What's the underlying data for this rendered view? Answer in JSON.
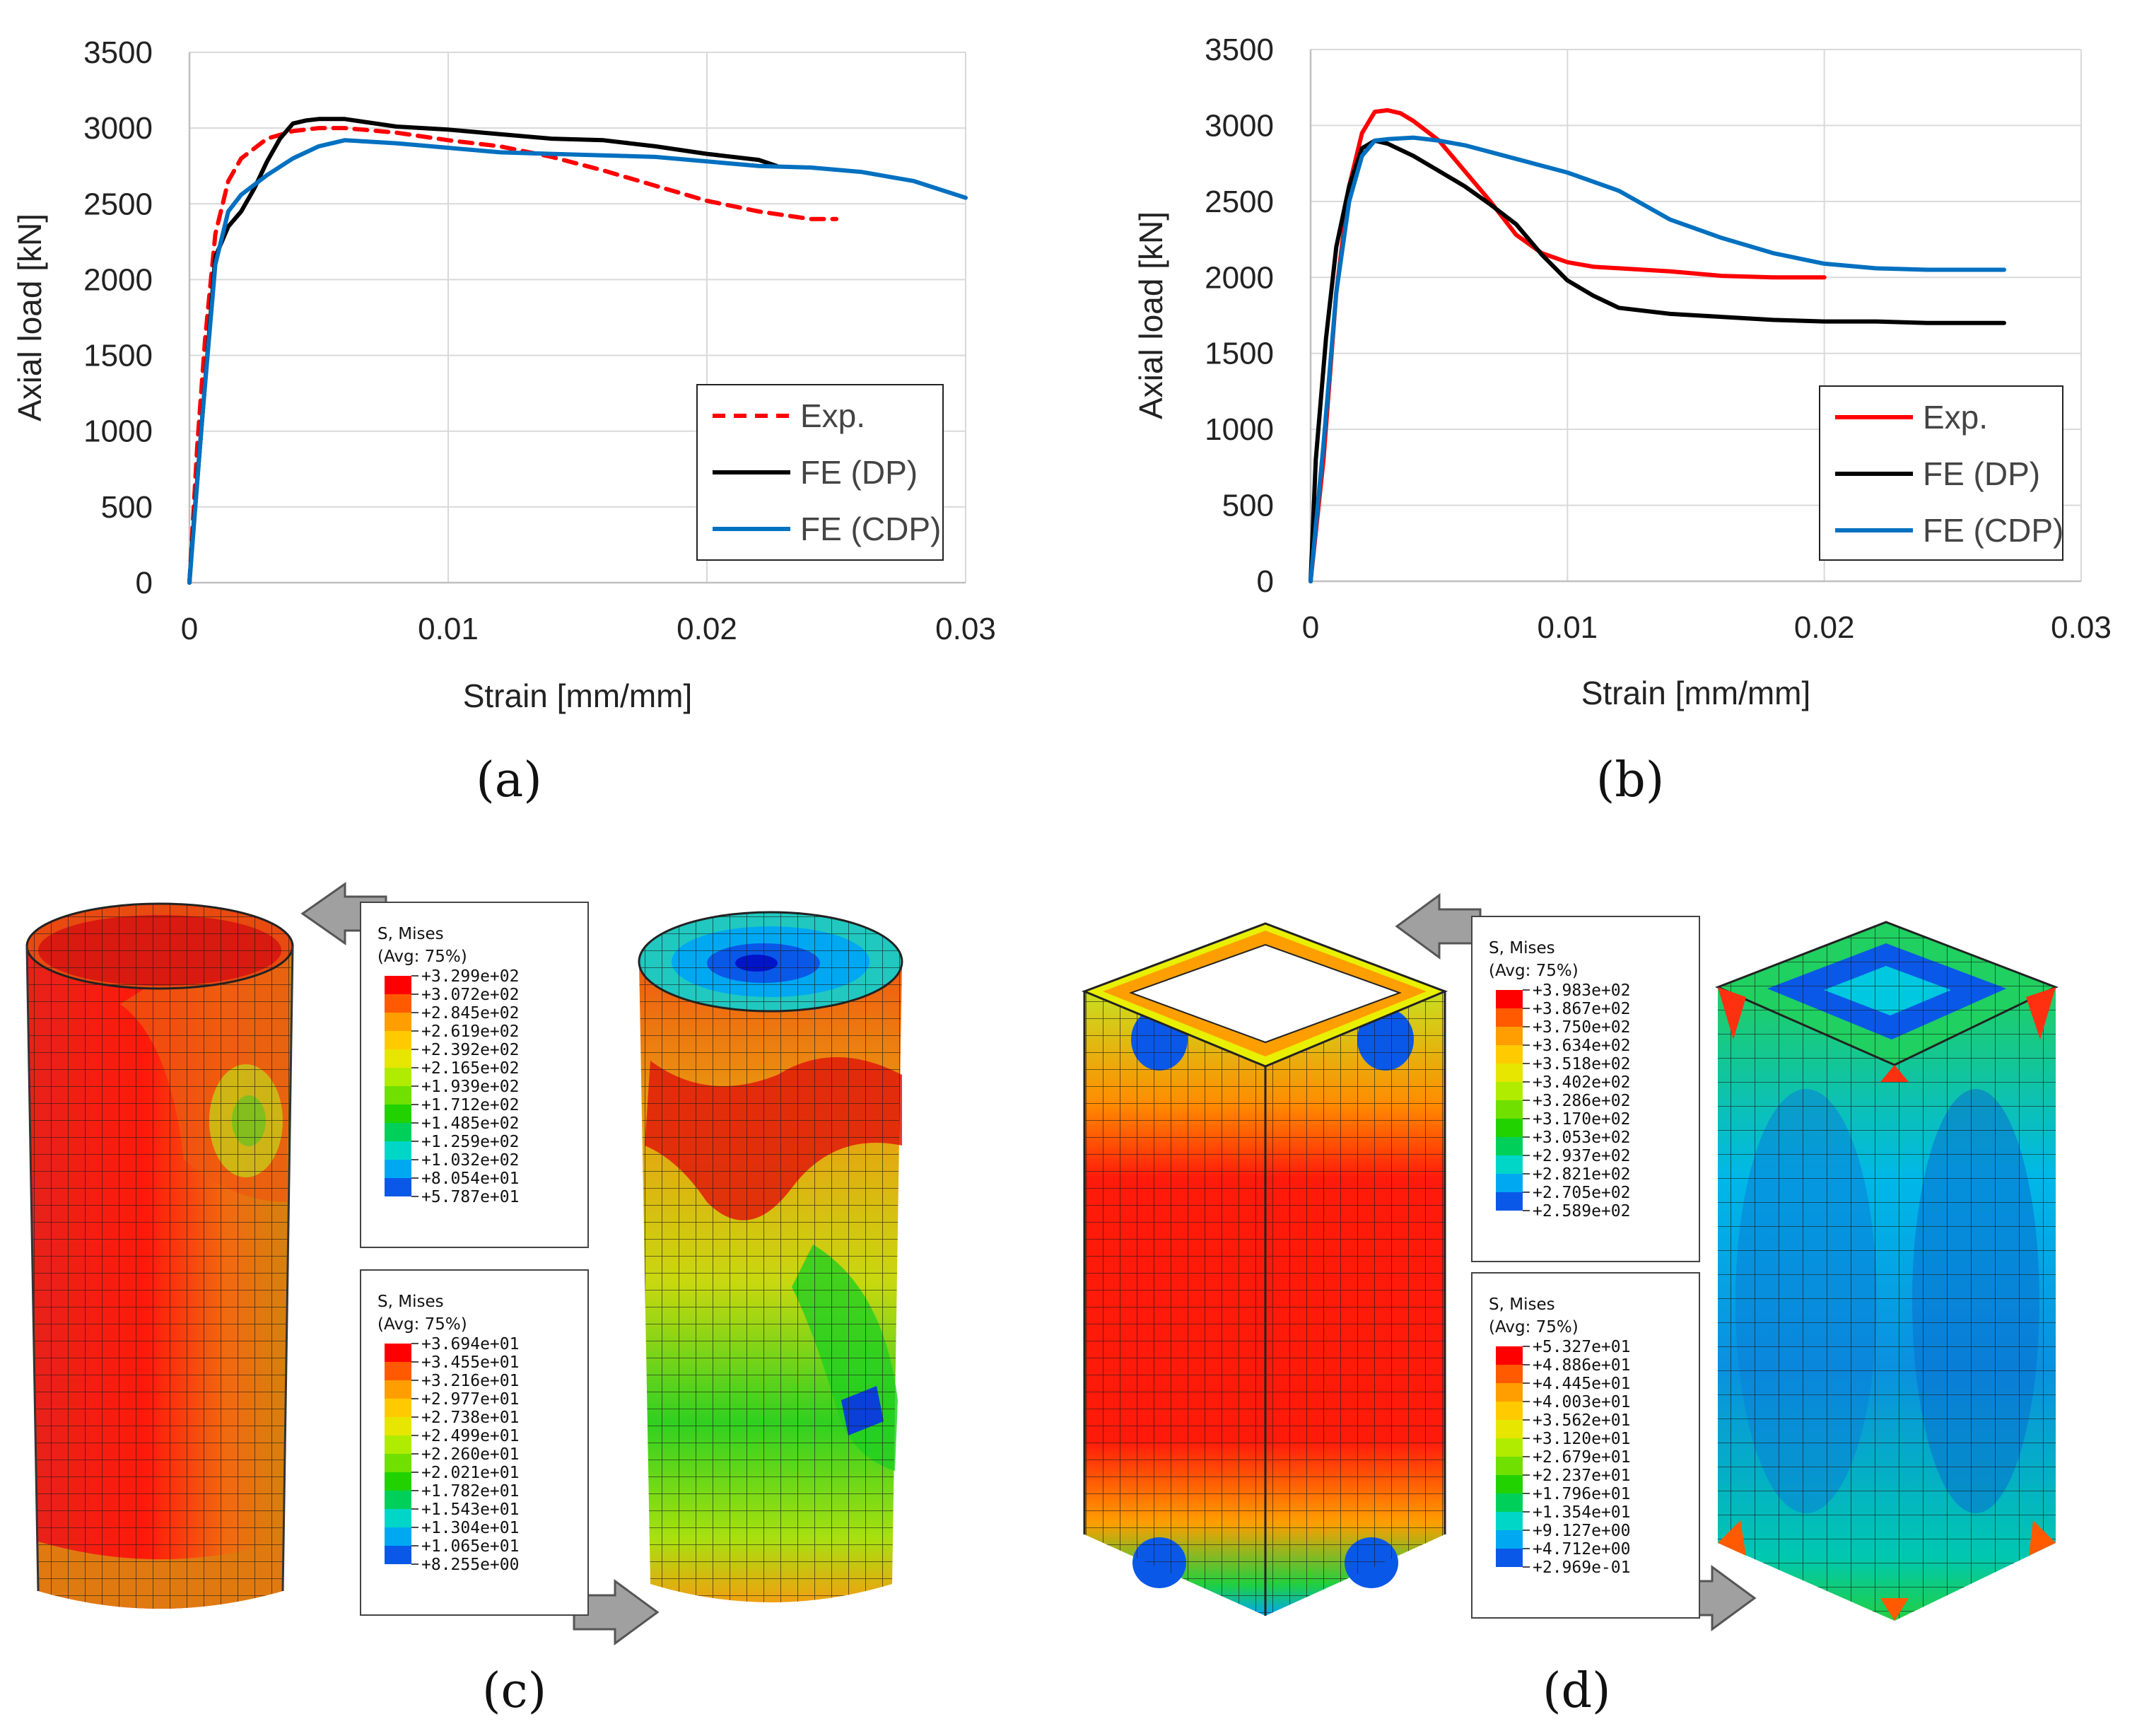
{
  "chart_data": [
    {
      "type": "line",
      "panel_label": "(a)",
      "xlabel": "Strain [mm/mm]",
      "ylabel": "Axial load [kN]",
      "xlim": [
        0,
        0.03
      ],
      "ylim": [
        0,
        3500
      ],
      "xticks": [
        0,
        0.01,
        0.02,
        0.03
      ],
      "xtick_labels": [
        "0",
        "0.01",
        "0.02",
        "0.03"
      ],
      "yticks": [
        0,
        500,
        1000,
        1500,
        2000,
        2500,
        3000,
        3500
      ],
      "ytick_labels": [
        "0",
        "500",
        "1000",
        "1500",
        "2000",
        "2500",
        "3000",
        "3500"
      ],
      "grid": "horizontal",
      "legend_position": "bottom-right",
      "series": [
        {
          "name": "Exp.",
          "color": "#ff0000",
          "dash": true,
          "x": [
            0,
            0.0003,
            0.0006,
            0.001,
            0.0015,
            0.002,
            0.003,
            0.004,
            0.005,
            0.006,
            0.008,
            0.01,
            0.012,
            0.014,
            0.016,
            0.018,
            0.02,
            0.022,
            0.024,
            0.025
          ],
          "y": [
            0,
            900,
            1600,
            2300,
            2650,
            2800,
            2930,
            2980,
            3000,
            3000,
            2970,
            2920,
            2880,
            2810,
            2720,
            2620,
            2520,
            2450,
            2400,
            2400
          ]
        },
        {
          "name": "FE (DP)",
          "color": "#000000",
          "dash": false,
          "x": [
            0,
            0.0001,
            0.0005,
            0.001,
            0.0015,
            0.002,
            0.0025,
            0.003,
            0.0035,
            0.004,
            0.0045,
            0.005,
            0.006,
            0.008,
            0.01,
            0.012,
            0.014,
            0.016,
            0.018,
            0.02,
            0.022,
            0.0227
          ],
          "y": [
            0,
            250,
            1100,
            2150,
            2350,
            2450,
            2600,
            2780,
            2930,
            3030,
            3050,
            3060,
            3060,
            3010,
            2990,
            2960,
            2930,
            2920,
            2880,
            2830,
            2790,
            2750
          ]
        },
        {
          "name": "FE (CDP)",
          "color": "#0070c0",
          "dash": false,
          "x": [
            0,
            0.0005,
            0.001,
            0.0015,
            0.002,
            0.003,
            0.004,
            0.005,
            0.006,
            0.008,
            0.01,
            0.012,
            0.014,
            0.016,
            0.018,
            0.02,
            0.022,
            0.024,
            0.026,
            0.028,
            0.03
          ],
          "y": [
            0,
            1100,
            2100,
            2450,
            2560,
            2690,
            2800,
            2880,
            2920,
            2900,
            2870,
            2840,
            2830,
            2820,
            2810,
            2780,
            2750,
            2740,
            2710,
            2650,
            2540
          ]
        }
      ]
    },
    {
      "type": "line",
      "panel_label": "(b)",
      "xlabel": "Strain [mm/mm]",
      "ylabel": "Axial load [kN]",
      "xlim": [
        0,
        0.03
      ],
      "ylim": [
        0,
        3500
      ],
      "xticks": [
        0,
        0.01,
        0.02,
        0.03
      ],
      "xtick_labels": [
        "0",
        "0.01",
        "0.02",
        "0.03"
      ],
      "yticks": [
        0,
        500,
        1000,
        1500,
        2000,
        2500,
        3000,
        3500
      ],
      "ytick_labels": [
        "0",
        "500",
        "1000",
        "1500",
        "2000",
        "2500",
        "3000",
        "3500"
      ],
      "grid": "horizontal",
      "legend_position": "bottom-right",
      "series": [
        {
          "name": "Exp.",
          "color": "#ff0000",
          "dash": false,
          "x": [
            0,
            0.0005,
            0.001,
            0.0015,
            0.002,
            0.0025,
            0.003,
            0.0035,
            0.004,
            0.005,
            0.006,
            0.007,
            0.008,
            0.009,
            0.01,
            0.011,
            0.012,
            0.014,
            0.016,
            0.018,
            0.02
          ],
          "y": [
            0,
            800,
            1900,
            2600,
            2950,
            3090,
            3100,
            3080,
            3030,
            2900,
            2700,
            2500,
            2280,
            2160,
            2100,
            2070,
            2060,
            2040,
            2010,
            2000,
            2000
          ]
        },
        {
          "name": "FE (DP)",
          "color": "#000000",
          "dash": false,
          "x": [
            0,
            0.0002,
            0.0006,
            0.001,
            0.0015,
            0.002,
            0.0025,
            0.003,
            0.004,
            0.005,
            0.006,
            0.007,
            0.008,
            0.009,
            0.01,
            0.011,
            0.012,
            0.014,
            0.016,
            0.018,
            0.02,
            0.022,
            0.024,
            0.027
          ],
          "y": [
            0,
            800,
            1600,
            2200,
            2600,
            2850,
            2900,
            2880,
            2800,
            2700,
            2600,
            2480,
            2350,
            2150,
            1980,
            1880,
            1800,
            1760,
            1740,
            1720,
            1710,
            1710,
            1700,
            1700
          ]
        },
        {
          "name": "FE (CDP)",
          "color": "#0070c0",
          "dash": false,
          "x": [
            0,
            0.0005,
            0.001,
            0.0015,
            0.002,
            0.0025,
            0.003,
            0.004,
            0.005,
            0.006,
            0.008,
            0.01,
            0.012,
            0.014,
            0.016,
            0.018,
            0.02,
            0.022,
            0.024,
            0.027
          ],
          "y": [
            0,
            900,
            1900,
            2500,
            2800,
            2900,
            2910,
            2920,
            2900,
            2870,
            2780,
            2690,
            2570,
            2380,
            2260,
            2160,
            2090,
            2060,
            2050,
            2050
          ]
        }
      ]
    }
  ],
  "contour_panels": [
    {
      "panel_label": "(c)",
      "legends": [
        {
          "title": "S, Mises",
          "subtitle": "(Avg: 75%)",
          "values": [
            "+3.299e+02",
            "+3.072e+02",
            "+2.845e+02",
            "+2.619e+02",
            "+2.392e+02",
            "+2.165e+02",
            "+1.939e+02",
            "+1.712e+02",
            "+1.485e+02",
            "+1.259e+02",
            "+1.032e+02",
            "+8.054e+01",
            "+5.787e+01"
          ]
        },
        {
          "title": "S, Mises",
          "subtitle": "(Avg: 75%)",
          "values": [
            "+3.694e+01",
            "+3.455e+01",
            "+3.216e+01",
            "+2.977e+01",
            "+2.738e+01",
            "+2.499e+01",
            "+2.260e+01",
            "+2.021e+01",
            "+1.782e+01",
            "+1.543e+01",
            "+1.304e+01",
            "+1.065e+01",
            "+8.255e+00"
          ]
        }
      ]
    },
    {
      "panel_label": "(d)",
      "legends": [
        {
          "title": "S, Mises",
          "subtitle": "(Avg: 75%)",
          "values": [
            "+3.983e+02",
            "+3.867e+02",
            "+3.750e+02",
            "+3.634e+02",
            "+3.518e+02",
            "+3.402e+02",
            "+3.286e+02",
            "+3.170e+02",
            "+3.053e+02",
            "+2.937e+02",
            "+2.821e+02",
            "+2.705e+02",
            "+2.589e+02"
          ]
        },
        {
          "title": "S, Mises",
          "subtitle": "(Avg: 75%)",
          "values": [
            "+5.327e+01",
            "+4.886e+01",
            "+4.445e+01",
            "+4.003e+01",
            "+3.562e+01",
            "+3.120e+01",
            "+2.679e+01",
            "+2.237e+01",
            "+1.796e+01",
            "+1.354e+01",
            "+9.127e+00",
            "+4.712e+00",
            "+2.969e-01"
          ]
        }
      ]
    }
  ],
  "contour_colors": [
    "#ff0000",
    "#ff5a00",
    "#ff9e00",
    "#ffcb00",
    "#e6e600",
    "#b0ec00",
    "#6fe000",
    "#22d200",
    "#00d05a",
    "#00d6c8",
    "#00a8f2",
    "#0a58e8",
    "#0014c8"
  ]
}
